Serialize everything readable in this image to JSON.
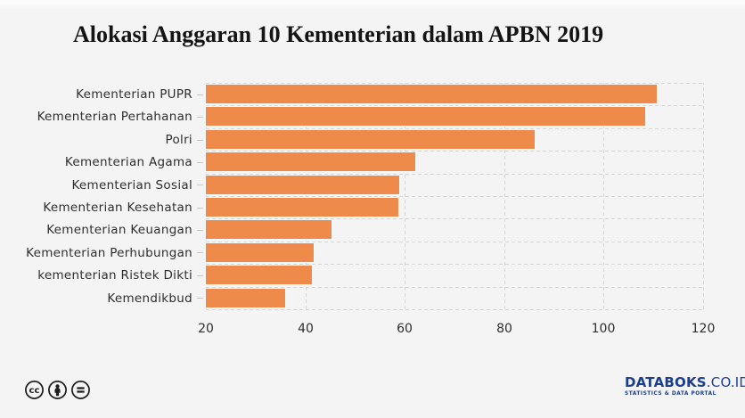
{
  "title": "Alokasi Anggaran 10 Kementerian dalam APBN 2019",
  "colors": {
    "background": "#F4F4F4",
    "bar": "#EF8B4A",
    "grid": "#D6D6D6",
    "text": "#2E2E2E",
    "brand_navy": "#1B3E90"
  },
  "chart_data": {
    "type": "bar",
    "orientation": "horizontal",
    "title": "Alokasi Anggaran 10 Kementerian dalam APBN 2019",
    "categories": [
      "Kementerian PUPR",
      "Kementerian Pertahanan",
      "Polri",
      "Kementerian Agama",
      "Kementerian Sosial",
      "Kementerian Kesehatan",
      "Kementerian Keuangan",
      "Kementerian Perhubungan",
      "kementerian Ristek Dikti",
      "Kemendikbud"
    ],
    "values": [
      110.7,
      108.4,
      86.2,
      62.1,
      58.9,
      58.7,
      45.2,
      41.6,
      41.3,
      36.0
    ],
    "xlabel": "",
    "ylabel": "",
    "xlim": [
      20,
      120
    ],
    "xticks": [
      "20",
      "40",
      "60",
      "80",
      "100",
      "120"
    ],
    "grid": "dashed",
    "legend": "none"
  },
  "footer": {
    "license_icons": [
      {
        "name": "cc-icon",
        "glyph": "cc"
      },
      {
        "name": "cc-by-icon",
        "glyph": "person"
      },
      {
        "name": "cc-nd-icon",
        "glyph": "equals"
      }
    ],
    "brand": {
      "name": "DATABOKS",
      "suffix": ".CO.ID",
      "tagline": "STATISTICS & DATA PORTAL"
    }
  }
}
